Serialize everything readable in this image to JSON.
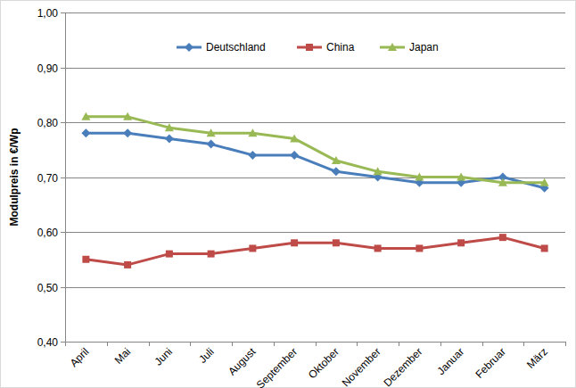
{
  "chart_data": {
    "type": "line",
    "y_label": "Modulpreis in €/Wp",
    "categories": [
      "April",
      "Mai",
      "Juni",
      "Juli",
      "August",
      "September",
      "Oktober",
      "November",
      "Dezember",
      "Januar",
      "Februar",
      "März"
    ],
    "series": [
      {
        "name": "Deutschland",
        "color": "#4a7ebb",
        "marker": "diamond",
        "values": [
          0.78,
          0.78,
          0.77,
          0.76,
          0.74,
          0.74,
          0.71,
          0.7,
          0.69,
          0.69,
          0.7,
          0.68
        ]
      },
      {
        "name": "China",
        "color": "#be4b48",
        "marker": "square",
        "values": [
          0.55,
          0.54,
          0.56,
          0.56,
          0.57,
          0.58,
          0.58,
          0.57,
          0.57,
          0.58,
          0.59,
          0.57
        ]
      },
      {
        "name": "Japan",
        "color": "#98b954",
        "marker": "triangle",
        "values": [
          0.81,
          0.81,
          0.79,
          0.78,
          0.78,
          0.77,
          0.73,
          0.71,
          0.7,
          0.7,
          0.69,
          0.69
        ]
      }
    ],
    "ylim": [
      0.4,
      1.0
    ],
    "yticks": [
      {
        "value": 0.4,
        "label": "0,40"
      },
      {
        "value": 0.5,
        "label": "0,50"
      },
      {
        "value": 0.6,
        "label": "0,60"
      },
      {
        "value": 0.7,
        "label": "0,70"
      },
      {
        "value": 0.8,
        "label": "0,80"
      },
      {
        "value": 0.9,
        "label": "0,90"
      },
      {
        "value": 1.0,
        "label": "1,00"
      }
    ],
    "grid": true,
    "legend": "top"
  }
}
